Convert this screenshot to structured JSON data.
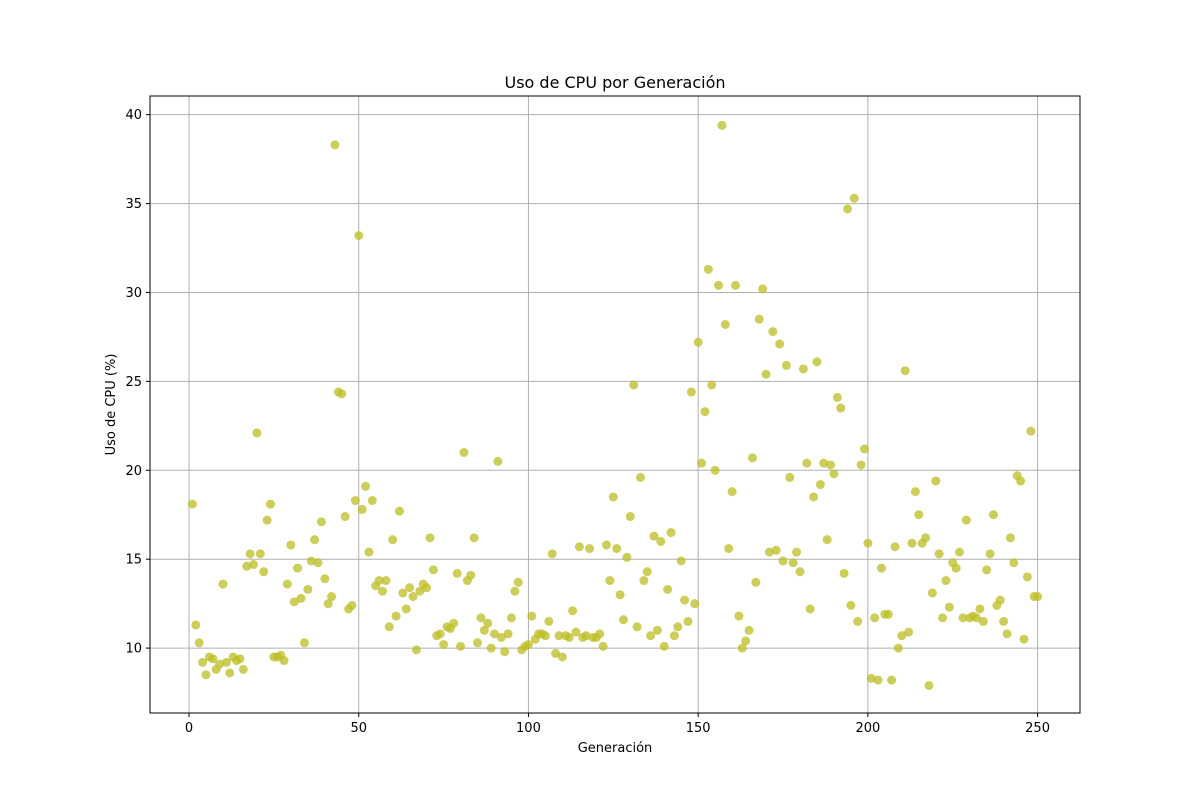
{
  "chart_data": {
    "type": "scatter",
    "title": "Uso de CPU por Generación",
    "xlabel": "Generación",
    "ylabel": "Uso de CPU (%)",
    "xlim": [
      -11.5,
      262.5
    ],
    "ylim": [
      6.35,
      41.05
    ],
    "xticks": [
      0,
      50,
      100,
      150,
      200,
      250
    ],
    "yticks": [
      10,
      15,
      20,
      25,
      30,
      35,
      40
    ],
    "grid": true,
    "color": "#bcbd22",
    "x": [
      1,
      2,
      3,
      4,
      5,
      6,
      7,
      8,
      9,
      10,
      11,
      12,
      13,
      14,
      15,
      16,
      17,
      18,
      19,
      20,
      21,
      22,
      23,
      24,
      25,
      26,
      27,
      28,
      29,
      30,
      31,
      32,
      33,
      34,
      35,
      36,
      37,
      38,
      39,
      40,
      41,
      42,
      43,
      44,
      45,
      46,
      47,
      48,
      49,
      50,
      51,
      52,
      53,
      54,
      55,
      56,
      57,
      58,
      59,
      60,
      61,
      62,
      63,
      64,
      65,
      66,
      67,
      68,
      69,
      70,
      71,
      72,
      73,
      74,
      75,
      76,
      77,
      78,
      79,
      80,
      81,
      82,
      83,
      84,
      85,
      86,
      87,
      88,
      89,
      90,
      91,
      92,
      93,
      94,
      95,
      96,
      97,
      98,
      99,
      100,
      101,
      102,
      103,
      104,
      105,
      106,
      107,
      108,
      109,
      110,
      111,
      112,
      113,
      114,
      115,
      116,
      117,
      118,
      119,
      120,
      121,
      122,
      123,
      124,
      125,
      126,
      127,
      128,
      129,
      130,
      131,
      132,
      133,
      134,
      135,
      136,
      137,
      138,
      139,
      140,
      141,
      142,
      143,
      144,
      145,
      146,
      147,
      148,
      149,
      150,
      151,
      152,
      153,
      154,
      155,
      156,
      157,
      158,
      159,
      160,
      161,
      162,
      163,
      164,
      165,
      166,
      167,
      168,
      169,
      170,
      171,
      172,
      173,
      174,
      175,
      176,
      177,
      178,
      179,
      180,
      181,
      182,
      183,
      184,
      185,
      186,
      187,
      188,
      189,
      190,
      191,
      192,
      193,
      194,
      195,
      196,
      197,
      198,
      199,
      200,
      201,
      202,
      203,
      204,
      205,
      206,
      207,
      208,
      209,
      210,
      211,
      212,
      213,
      214,
      215,
      216,
      217,
      218,
      219,
      220,
      221,
      222,
      223,
      224,
      225,
      226,
      227,
      228,
      229,
      230,
      231,
      232,
      233,
      234,
      235,
      236,
      237,
      238,
      239,
      240,
      241,
      242,
      243,
      244,
      245,
      246,
      247,
      248,
      249,
      250
    ],
    "y": [
      18.1,
      11.3,
      10.3,
      9.2,
      8.5,
      9.5,
      9.4,
      8.8,
      9.1,
      13.6,
      9.2,
      8.6,
      9.5,
      9.3,
      9.4,
      8.8,
      14.6,
      15.3,
      14.7,
      22.1,
      15.3,
      14.3,
      17.2,
      18.1,
      9.5,
      9.5,
      9.6,
      9.3,
      13.6,
      15.8,
      12.6,
      14.5,
      12.8,
      10.3,
      13.3,
      14.9,
      16.1,
      14.8,
      17.1,
      13.9,
      12.5,
      12.9,
      38.3,
      24.4,
      24.3,
      17.4,
      12.2,
      12.4,
      18.3,
      33.2,
      17.8,
      19.1,
      15.4,
      18.3,
      13.5,
      13.8,
      13.2,
      13.8,
      11.2,
      16.1,
      11.8,
      17.7,
      13.1,
      12.2,
      13.4,
      12.9,
      9.9,
      13.2,
      13.6,
      13.4,
      16.2,
      14.4,
      10.7,
      10.8,
      10.2,
      11.2,
      11.1,
      11.4,
      14.2,
      10.1,
      21.0,
      13.8,
      14.1,
      16.2,
      10.3,
      11.7,
      11.0,
      11.4,
      10.0,
      10.8,
      20.5,
      10.6,
      9.8,
      10.8,
      11.7,
      13.2,
      13.7,
      9.9,
      10.1,
      10.2,
      11.8,
      10.5,
      10.8,
      10.8,
      10.7,
      11.5,
      15.3,
      9.7,
      10.7,
      9.5,
      10.7,
      10.6,
      12.1,
      10.9,
      15.7,
      10.6,
      10.7,
      15.6,
      10.6,
      10.6,
      10.8,
      10.1,
      15.8,
      13.8,
      18.5,
      15.6,
      13.0,
      11.6,
      15.1,
      17.4,
      24.8,
      11.2,
      19.6,
      13.8,
      14.3,
      10.7,
      16.3,
      11.0,
      16.0,
      10.1,
      13.3,
      16.5,
      10.7,
      11.2,
      14.9,
      12.7,
      11.5,
      24.4,
      12.5,
      27.2,
      20.4,
      23.3,
      31.3,
      24.8,
      20.0,
      30.4,
      39.4,
      28.2,
      15.6,
      18.8,
      30.4,
      11.8,
      10.0,
      10.4,
      11.0,
      20.7,
      13.7,
      28.5,
      30.2,
      25.4,
      15.4,
      27.8,
      15.5,
      27.1,
      14.9,
      25.9,
      19.6,
      14.8,
      15.4,
      14.3,
      25.7,
      20.4,
      12.2,
      18.5,
      26.1,
      19.2,
      20.4,
      16.1,
      20.3,
      19.8,
      24.1,
      23.5,
      14.2,
      34.7,
      12.4,
      35.3,
      11.5,
      20.3,
      21.2,
      15.9,
      8.3,
      11.7,
      8.2,
      14.5,
      11.9,
      11.9,
      8.2,
      15.7,
      10.0,
      10.7,
      25.6,
      10.9,
      15.9,
      18.8,
      17.5,
      15.9,
      16.2,
      7.9,
      13.1,
      19.4,
      15.3,
      11.7,
      13.8,
      12.3,
      14.8,
      14.5,
      15.4,
      11.7,
      17.2,
      11.7,
      11.8,
      11.7,
      12.2,
      11.5,
      14.4,
      15.3,
      17.5,
      12.4,
      12.7,
      11.5,
      10.8,
      16.2,
      14.8,
      19.7,
      19.4,
      10.5,
      14.0,
      22.2,
      12.9,
      12.9
    ]
  }
}
